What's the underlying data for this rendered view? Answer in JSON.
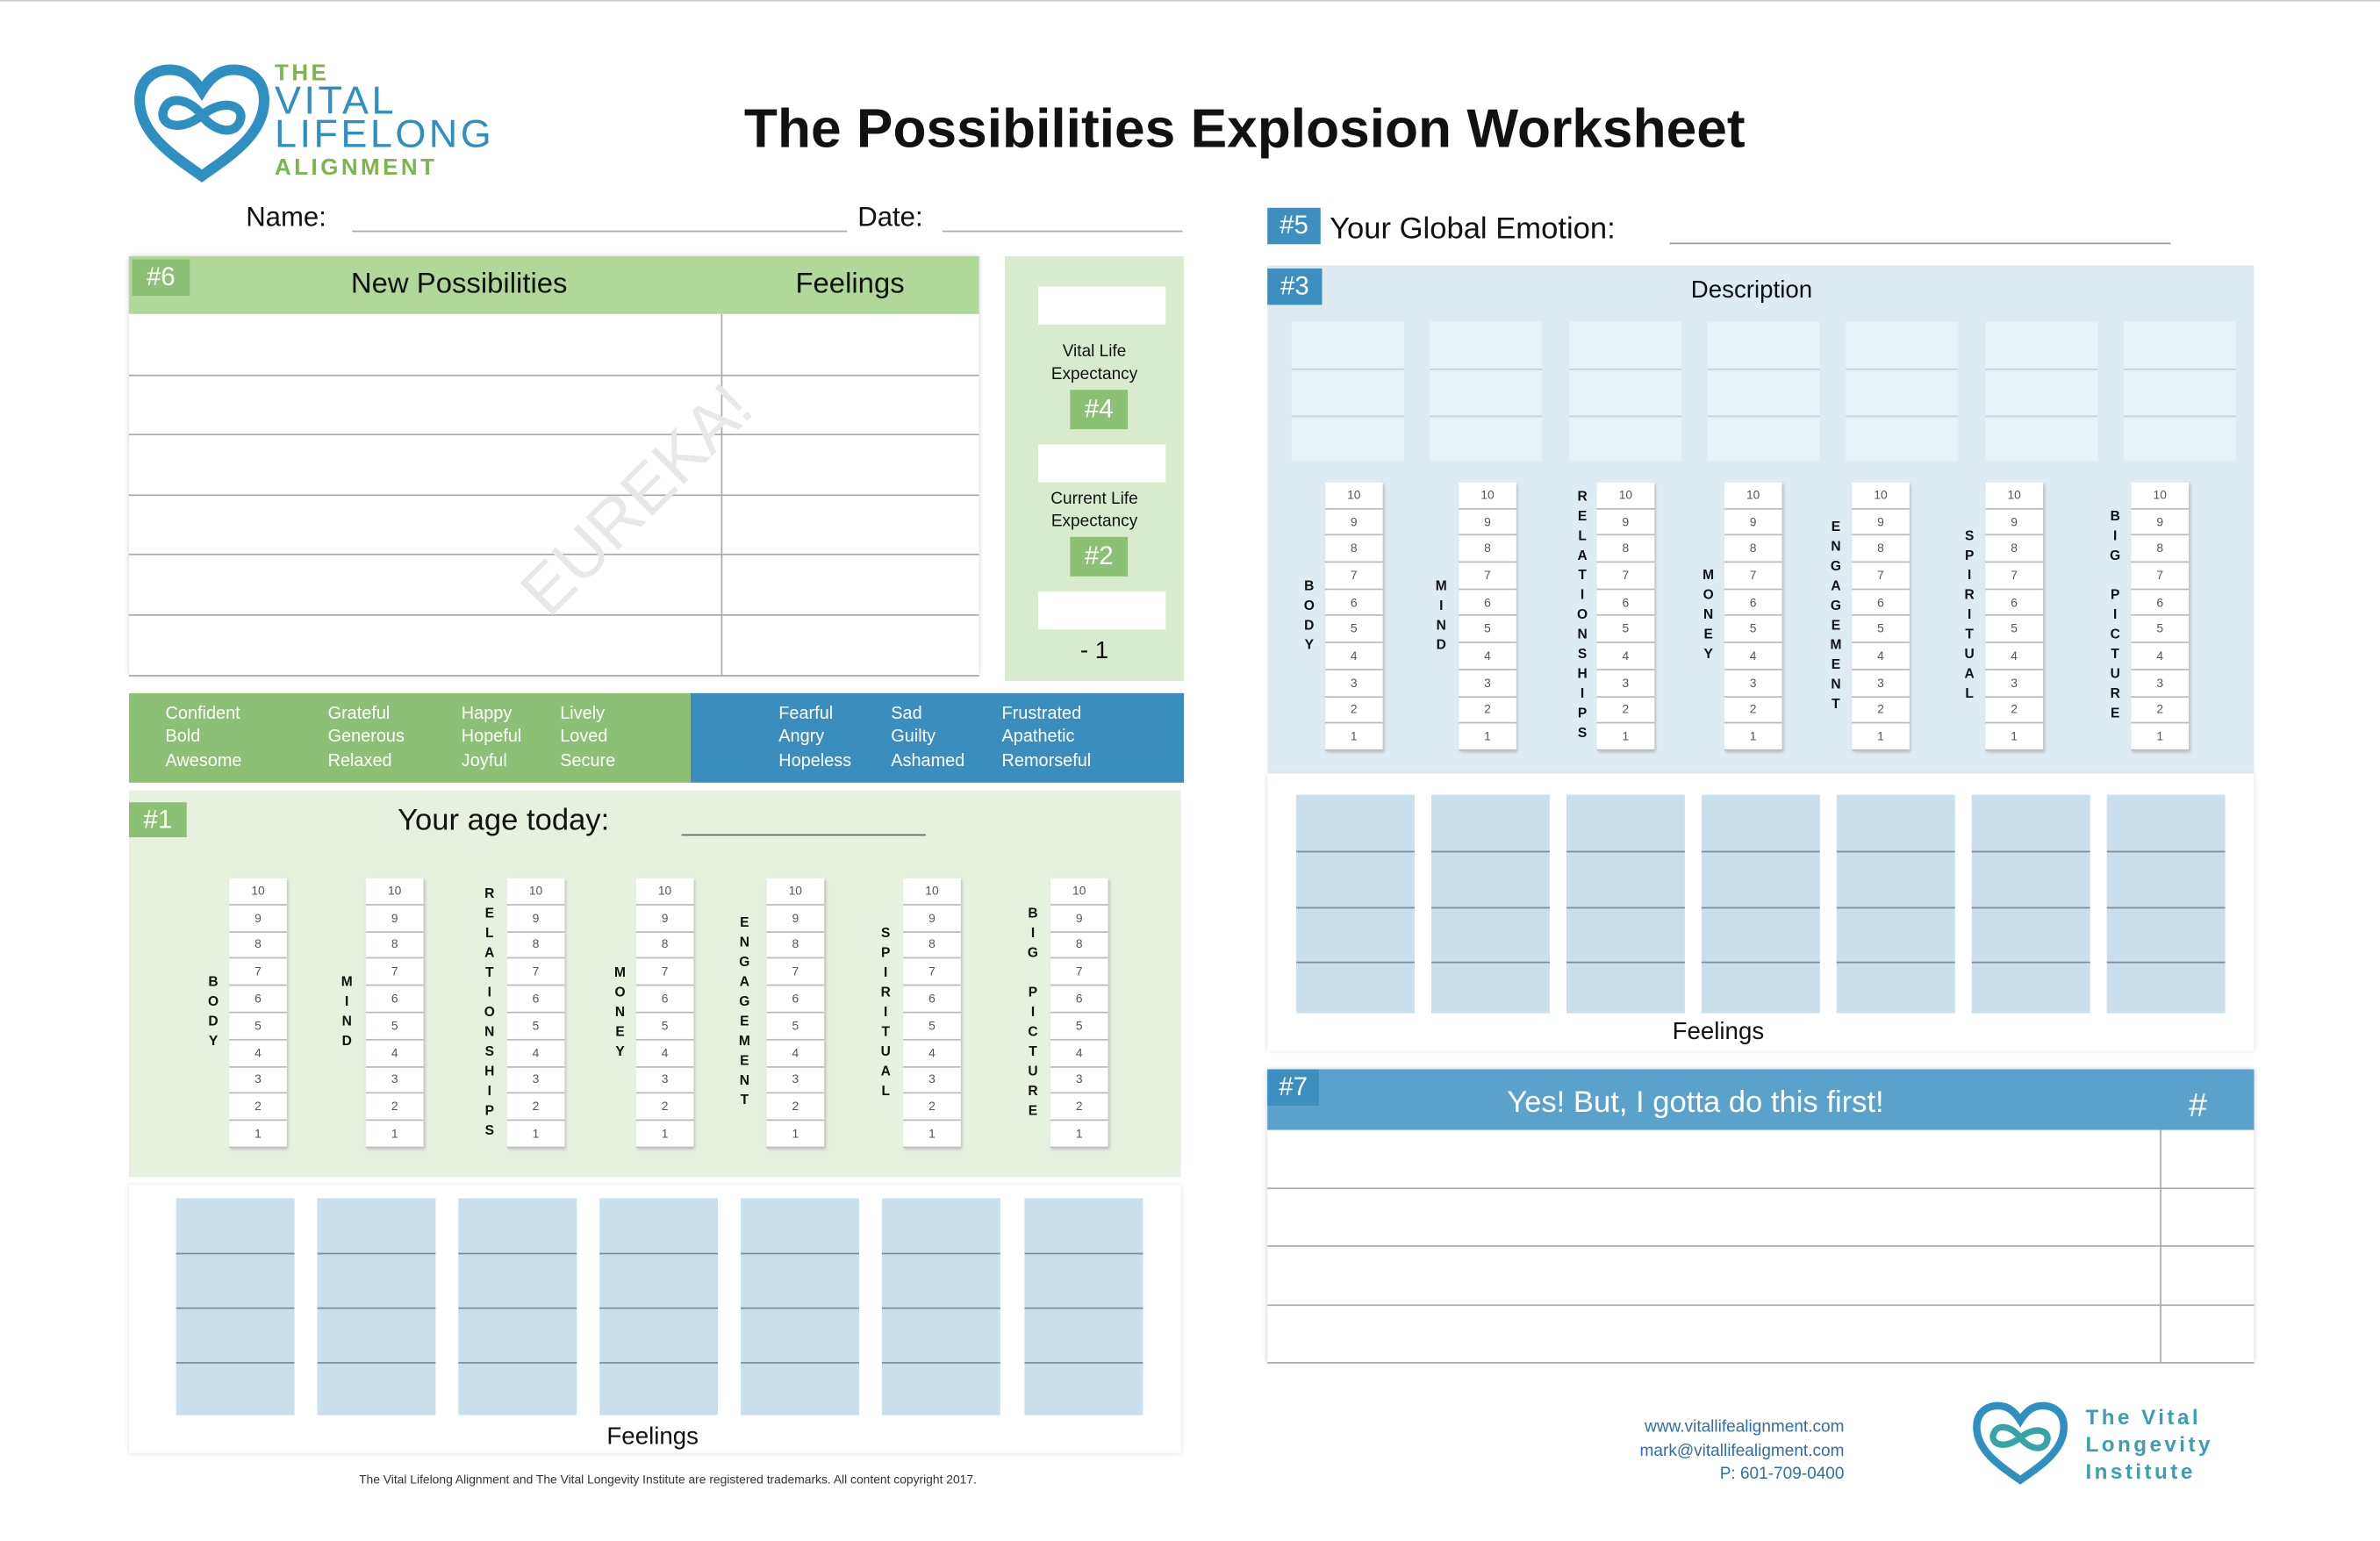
{
  "logo": [
    "THE",
    "VITAL",
    "LIFELONG",
    "ALIGNMENT"
  ],
  "title": "The Possibilities Explosion Worksheet",
  "fields": {
    "name": "Name:",
    "date": "Date:"
  },
  "section6": {
    "tag": "#6",
    "col1": "New Possibilities",
    "col2": "Feelings",
    "watermark": "EUREKA!"
  },
  "expectancy": {
    "vital": [
      "Vital Life",
      "Expectancy"
    ],
    "tag4": "#4",
    "current": [
      "Current Life",
      "Expectancy"
    ],
    "tag2": "#2",
    "minus": "- 1"
  },
  "positive_emotions": [
    [
      "Confident",
      "Bold",
      "Awesome"
    ],
    [
      "Grateful",
      "Generous",
      "Relaxed"
    ],
    [
      "Happy",
      "Hopeful",
      "Joyful"
    ],
    [
      "Lively",
      "Loved",
      "Secure"
    ]
  ],
  "negative_emotions": [
    [
      "Fearful",
      "Angry",
      "Hopeless"
    ],
    [
      "Sad",
      "Guilty",
      "Ashamed"
    ],
    [
      "Frustrated",
      "Apathetic",
      "Remorseful"
    ]
  ],
  "section1": {
    "tag": "#1",
    "label": "Your age today:",
    "feelings": "Feelings"
  },
  "categories": [
    "BODY",
    "MIND",
    "RELATIONSHIPS",
    "MONEY",
    "ENGAGEMENT",
    "SPIRITUAL",
    "BIG PICTURE"
  ],
  "scale": [
    10,
    9,
    8,
    7,
    6,
    5,
    4,
    3,
    2,
    1
  ],
  "section5": {
    "tag": "#5",
    "label": "Your Global Emotion:"
  },
  "section3": {
    "tag": "#3",
    "description": "Description",
    "feelings": "Feelings"
  },
  "section7": {
    "tag": "#7",
    "title": "Yes! But, I gotta do this first!",
    "hash": "#"
  },
  "contact": [
    "www.vitallifealignment.com",
    "mark@vitallifealigment.com",
    "P: 601-709-0400"
  ],
  "brand2": [
    "The Vital",
    "Longevity",
    "Institute"
  ],
  "footer": "The Vital Lifelong Alignment and The Vital Longevity Institute are registered trademarks. All content copyright 2017."
}
